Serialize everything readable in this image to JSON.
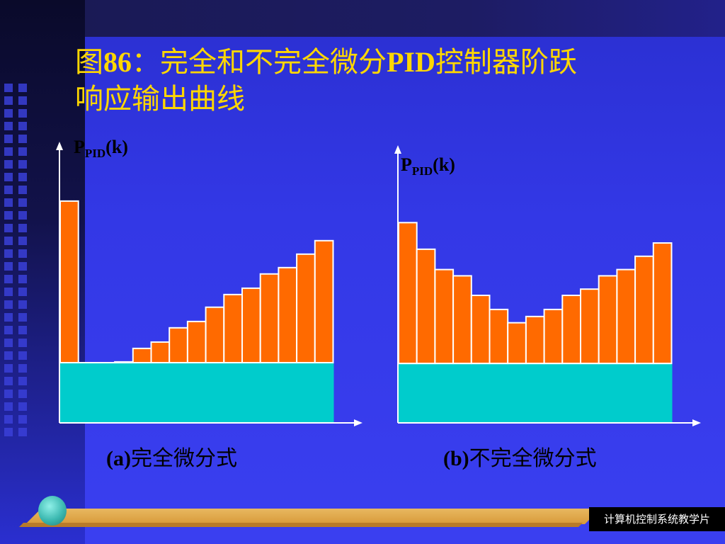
{
  "slide": {
    "title_prefix": "图",
    "title_number": "86",
    "title_rest_line1": "：完全和不完全微分",
    "title_pid": "PID",
    "title_rest_line1b": "控制器阶跃",
    "title_line2": "响应输出曲线",
    "footer_label": "计算机控制系统教学片"
  },
  "colors": {
    "bar_fill": "#ff6a00",
    "bar_stroke": "#ffffff",
    "base_fill": "#00cccc",
    "axis": "#ffffff",
    "title": "#ffd700"
  },
  "chart_data": [
    {
      "type": "bar",
      "ylabel_main": "P",
      "ylabel_sub": "PID",
      "ylabel_tail": "(k)",
      "caption_tag": "(a)",
      "caption_text": "完全微分式",
      "values": [
        280,
        52,
        58,
        77,
        94,
        102,
        120,
        128,
        146,
        162,
        170,
        188,
        196,
        213,
        230
      ],
      "base_level": 76,
      "ylim": [
        0,
        355
      ]
    },
    {
      "type": "bar",
      "ylabel_main": "P",
      "ylabel_sub": "PID",
      "ylabel_tail": "(k)",
      "caption_tag": "(b)",
      "caption_text": "不完全微分式",
      "values": [
        256,
        222,
        196,
        188,
        163,
        145,
        128,
        136,
        145,
        163,
        171,
        188,
        196,
        213,
        230
      ],
      "base_level": 76,
      "ylim": [
        0,
        355
      ]
    }
  ]
}
